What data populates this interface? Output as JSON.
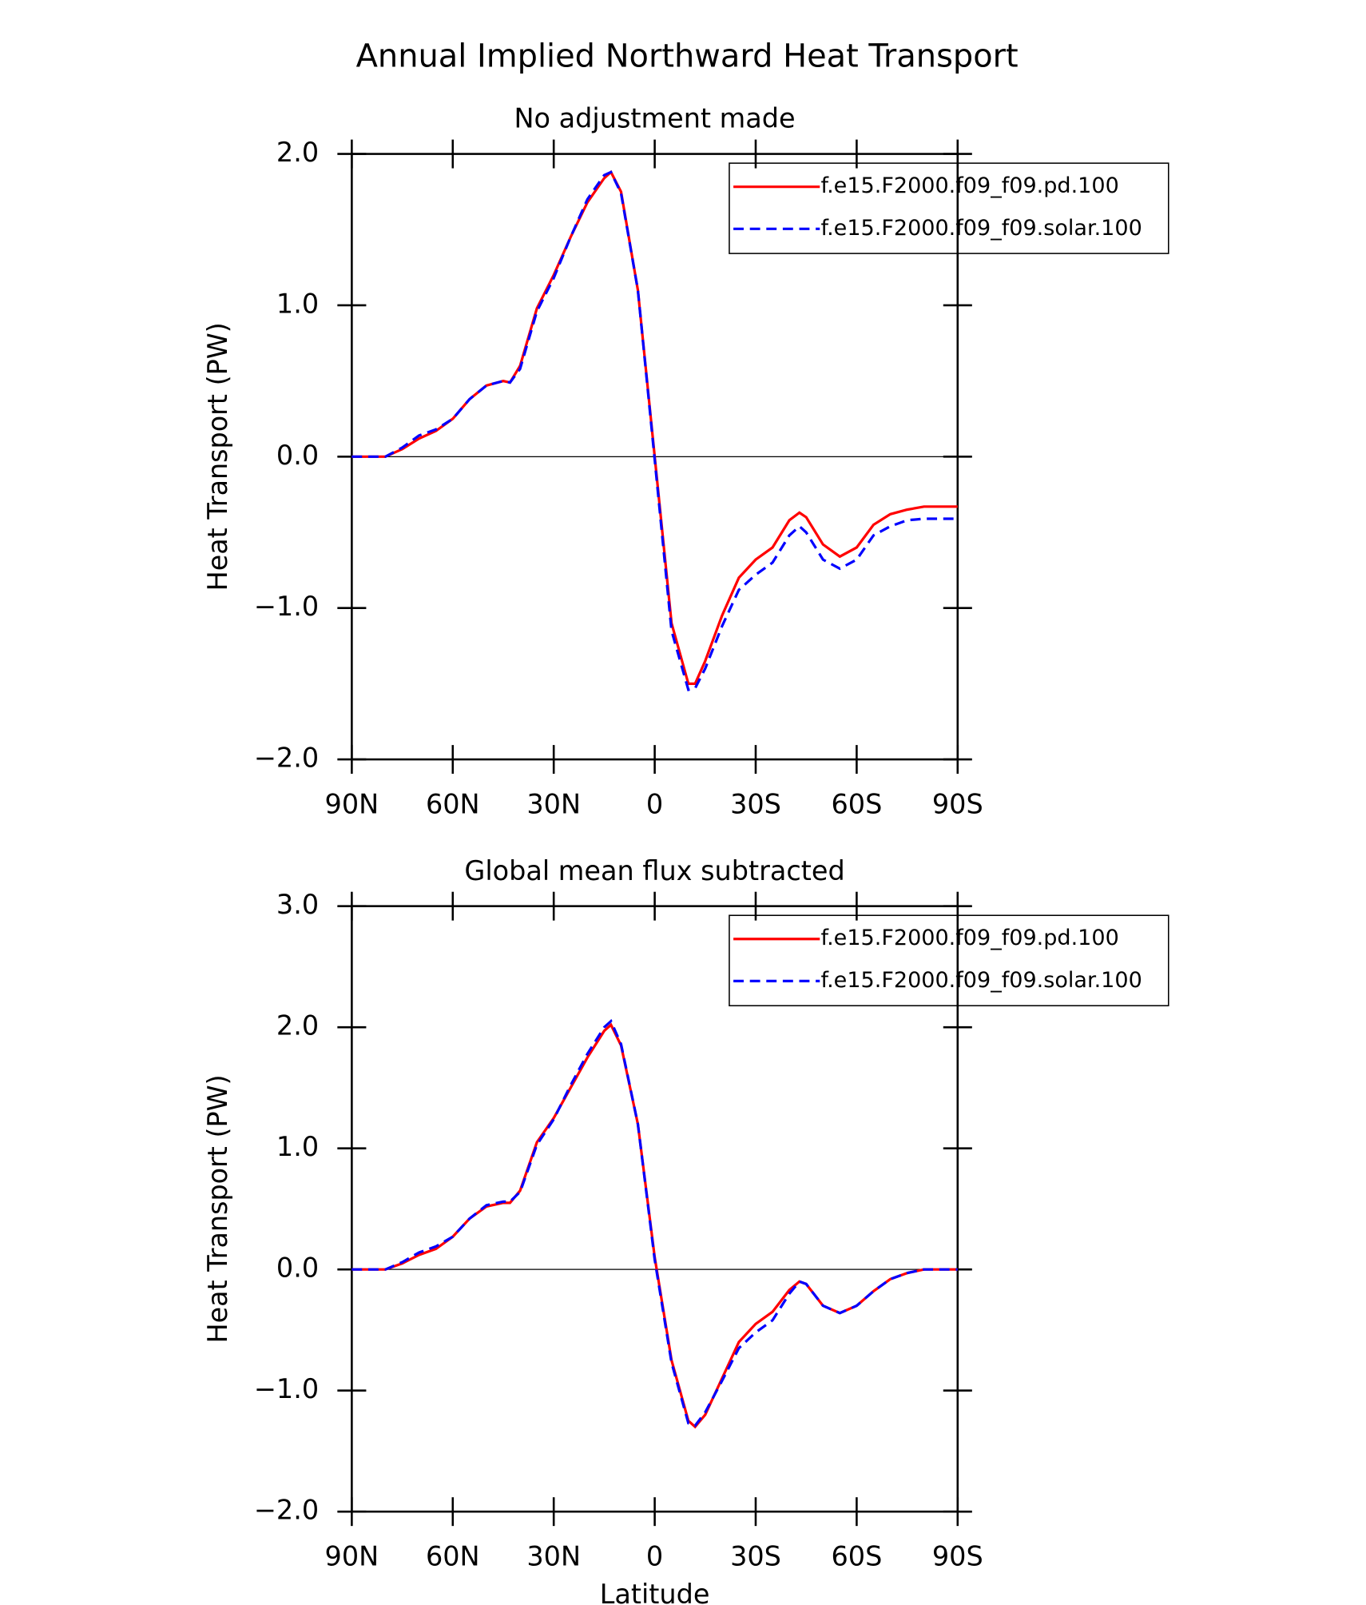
{
  "title": "Annual Implied Northward Heat Transport",
  "chart_data": [
    {
      "type": "line",
      "subtitle": "No adjustment made",
      "ylabel": "Heat Transport (PW)",
      "x": [
        90,
        85,
        80,
        75,
        70,
        65,
        60,
        55,
        50,
        45,
        43,
        40,
        35,
        30,
        25,
        20,
        15,
        13,
        10,
        5,
        0,
        -5,
        -10,
        -12,
        -15,
        -20,
        -25,
        -30,
        -35,
        -40,
        -43,
        -45,
        -50,
        -55,
        -60,
        -65,
        -70,
        -75,
        -80,
        -85,
        -90
      ],
      "xlim": [
        90,
        -90
      ],
      "xticks": [
        {
          "value": 90,
          "label": "90N"
        },
        {
          "value": 60,
          "label": "60N"
        },
        {
          "value": 30,
          "label": "30N"
        },
        0,
        {
          "value": -30,
          "label": "30S"
        },
        {
          "value": -60,
          "label": "60S"
        },
        {
          "value": -90,
          "label": "90S"
        }
      ],
      "ylim": [
        -2,
        2
      ],
      "yticks": [
        {
          "value": -2,
          "label": "−2.0"
        },
        {
          "value": -1,
          "label": "−1.0"
        },
        {
          "value": 0,
          "label": "0.0"
        },
        {
          "value": 1,
          "label": "1.0"
        },
        {
          "value": 2,
          "label": "2.0"
        }
      ],
      "legend": "upper right",
      "series": [
        {
          "name": "f.e15.F2000.f09_f09.pd.100",
          "color": "#ff0000",
          "dash": "solid",
          "values": [
            0,
            0,
            0,
            0.05,
            0.12,
            0.17,
            0.25,
            0.38,
            0.47,
            0.5,
            0.49,
            0.6,
            0.98,
            1.2,
            1.45,
            1.68,
            1.84,
            1.88,
            1.75,
            1.1,
            0,
            -1.1,
            -1.5,
            -1.5,
            -1.35,
            -1.05,
            -0.8,
            -0.68,
            -0.6,
            -0.42,
            -0.37,
            -0.4,
            -0.58,
            -0.66,
            -0.6,
            -0.45,
            -0.38,
            -0.35,
            -0.33,
            -0.33,
            -0.33
          ]
        },
        {
          "name": "f.e15.F2000.f09_f09.solar.100",
          "color": "#0000ff",
          "dash": "dashed",
          "values": [
            0,
            0,
            0,
            0.06,
            0.14,
            0.18,
            0.25,
            0.38,
            0.47,
            0.5,
            0.49,
            0.58,
            0.96,
            1.18,
            1.45,
            1.7,
            1.86,
            1.88,
            1.74,
            1.1,
            -0.02,
            -1.15,
            -1.54,
            -1.53,
            -1.4,
            -1.12,
            -0.88,
            -0.78,
            -0.7,
            -0.52,
            -0.46,
            -0.5,
            -0.68,
            -0.74,
            -0.68,
            -0.52,
            -0.46,
            -0.42,
            -0.41,
            -0.41,
            -0.41
          ]
        }
      ]
    },
    {
      "type": "line",
      "subtitle": "Global mean flux subtracted",
      "ylabel": "Heat Transport (PW)",
      "xlabel": "Latitude",
      "x": [
        90,
        85,
        80,
        75,
        70,
        65,
        60,
        55,
        50,
        45,
        43,
        40,
        35,
        30,
        25,
        20,
        15,
        13,
        10,
        5,
        0,
        -5,
        -10,
        -12,
        -15,
        -20,
        -25,
        -30,
        -35,
        -40,
        -43,
        -45,
        -50,
        -55,
        -60,
        -65,
        -70,
        -75,
        -80,
        -85,
        -90
      ],
      "xlim": [
        90,
        -90
      ],
      "xticks": [
        {
          "value": 90,
          "label": "90N"
        },
        {
          "value": 60,
          "label": "60N"
        },
        {
          "value": 30,
          "label": "30N"
        },
        0,
        {
          "value": -30,
          "label": "30S"
        },
        {
          "value": -60,
          "label": "60S"
        },
        {
          "value": -90,
          "label": "90S"
        }
      ],
      "ylim": [
        -2,
        3
      ],
      "yticks": [
        {
          "value": -2,
          "label": "−2.0"
        },
        {
          "value": -1,
          "label": "−1.0"
        },
        {
          "value": 0,
          "label": "0.0"
        },
        {
          "value": 1,
          "label": "1.0"
        },
        {
          "value": 2,
          "label": "2.0"
        },
        {
          "value": 3,
          "label": "3.0"
        }
      ],
      "legend": "upper right",
      "series": [
        {
          "name": "f.e15.F2000.f09_f09.pd.100",
          "color": "#ff0000",
          "dash": "solid",
          "values": [
            0,
            0,
            0,
            0.05,
            0.12,
            0.17,
            0.27,
            0.42,
            0.52,
            0.55,
            0.55,
            0.65,
            1.05,
            1.25,
            1.5,
            1.75,
            1.97,
            2.02,
            1.85,
            1.2,
            0.1,
            -0.75,
            -1.25,
            -1.3,
            -1.2,
            -0.9,
            -0.6,
            -0.45,
            -0.35,
            -0.17,
            -0.1,
            -0.12,
            -0.3,
            -0.36,
            -0.3,
            -0.18,
            -0.08,
            -0.03,
            0,
            0,
            0
          ]
        },
        {
          "name": "f.e15.F2000.f09_f09.solar.100",
          "color": "#0000ff",
          "dash": "dashed",
          "values": [
            0,
            0,
            0,
            0.06,
            0.14,
            0.19,
            0.27,
            0.42,
            0.53,
            0.56,
            0.56,
            0.64,
            1.03,
            1.24,
            1.52,
            1.78,
            2.0,
            2.05,
            1.86,
            1.2,
            0.08,
            -0.77,
            -1.27,
            -1.29,
            -1.18,
            -0.92,
            -0.65,
            -0.52,
            -0.42,
            -0.2,
            -0.1,
            -0.12,
            -0.3,
            -0.36,
            -0.3,
            -0.18,
            -0.08,
            -0.03,
            0,
            0,
            0
          ]
        }
      ]
    }
  ]
}
